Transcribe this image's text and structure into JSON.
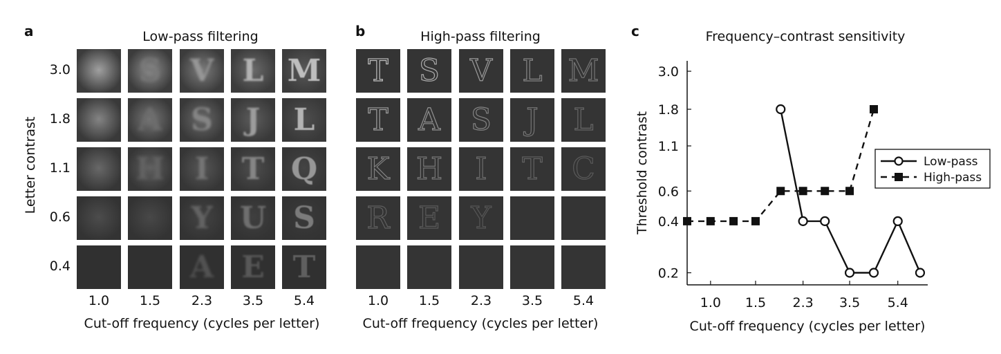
{
  "panel_a": {
    "letter": "a",
    "title": "Low-pass filtering",
    "ylabel": "Letter contrast",
    "xlabel": "Cut-off frequency (cycles per letter)",
    "row_labels": [
      "3.0",
      "1.8",
      "1.1",
      "0.6",
      "0.4"
    ],
    "col_labels": [
      "1.0",
      "1.5",
      "2.3",
      "3.5",
      "5.4"
    ],
    "letters": [
      [
        "",
        "S",
        "V",
        "L",
        "M"
      ],
      [
        "",
        "A",
        "S",
        "J",
        "L"
      ],
      [
        "",
        "H",
        "I",
        "T",
        "Q"
      ],
      [
        "",
        "",
        "Y",
        "U",
        "S"
      ],
      [
        "",
        "",
        "A",
        "E",
        "T"
      ]
    ]
  },
  "panel_b": {
    "letter": "b",
    "title": "High-pass filtering",
    "xlabel": "Cut-off frequency (cycles per letter)",
    "col_labels": [
      "1.0",
      "1.5",
      "2.3",
      "3.5",
      "5.4"
    ],
    "letters": [
      [
        "T",
        "S",
        "V",
        "L",
        "M"
      ],
      [
        "T",
        "A",
        "S",
        "J",
        "L"
      ],
      [
        "K",
        "H",
        "I",
        "T",
        "C"
      ],
      [
        "R",
        "E",
        "Y",
        "",
        ""
      ],
      [
        "",
        "",
        "",
        "",
        ""
      ]
    ]
  },
  "panel_c": {
    "letter": "c",
    "title": "Frequency–contrast sensitivity",
    "chart_data": {
      "type": "line",
      "title": "Frequency–contrast sensitivity",
      "xlabel": "Cut-off frequency (cycles per letter)",
      "ylabel": "Threshold contrast",
      "x_tick_labels": [
        "1.0",
        "1.5",
        "2.3",
        "3.5",
        "5.4"
      ],
      "x_ticks": [
        1.0,
        1.5,
        2.3,
        3.5,
        5.4
      ],
      "y_tick_labels": [
        "3.0",
        "1.8",
        "1.1",
        "0.6",
        "0.4",
        "0.2"
      ],
      "y_ticks": [
        3.0,
        1.8,
        1.1,
        0.6,
        0.4,
        0.2
      ],
      "x_scale": "log",
      "y_scale": "log",
      "xlim": [
        0.81,
        7.07
      ],
      "ylim": [
        0.17,
        3.45
      ],
      "grid": false,
      "legend_position": "right",
      "series": [
        {
          "name": "Low-pass",
          "marker": "open-circle",
          "line": "solid",
          "x": [
            1.88,
            2.3,
            2.8,
            3.5,
            4.35,
            5.4,
            6.6
          ],
          "y": [
            1.8,
            0.4,
            0.4,
            0.2,
            0.2,
            0.4,
            0.2
          ]
        },
        {
          "name": "High-pass",
          "marker": "filled-square",
          "line": "dashed",
          "x": [
            0.81,
            1.0,
            1.23,
            1.5,
            1.88,
            2.3,
            2.8,
            3.5,
            4.35
          ],
          "y": [
            0.4,
            0.4,
            0.4,
            0.4,
            0.6,
            0.6,
            0.6,
            0.6,
            1.8
          ]
        }
      ]
    }
  }
}
